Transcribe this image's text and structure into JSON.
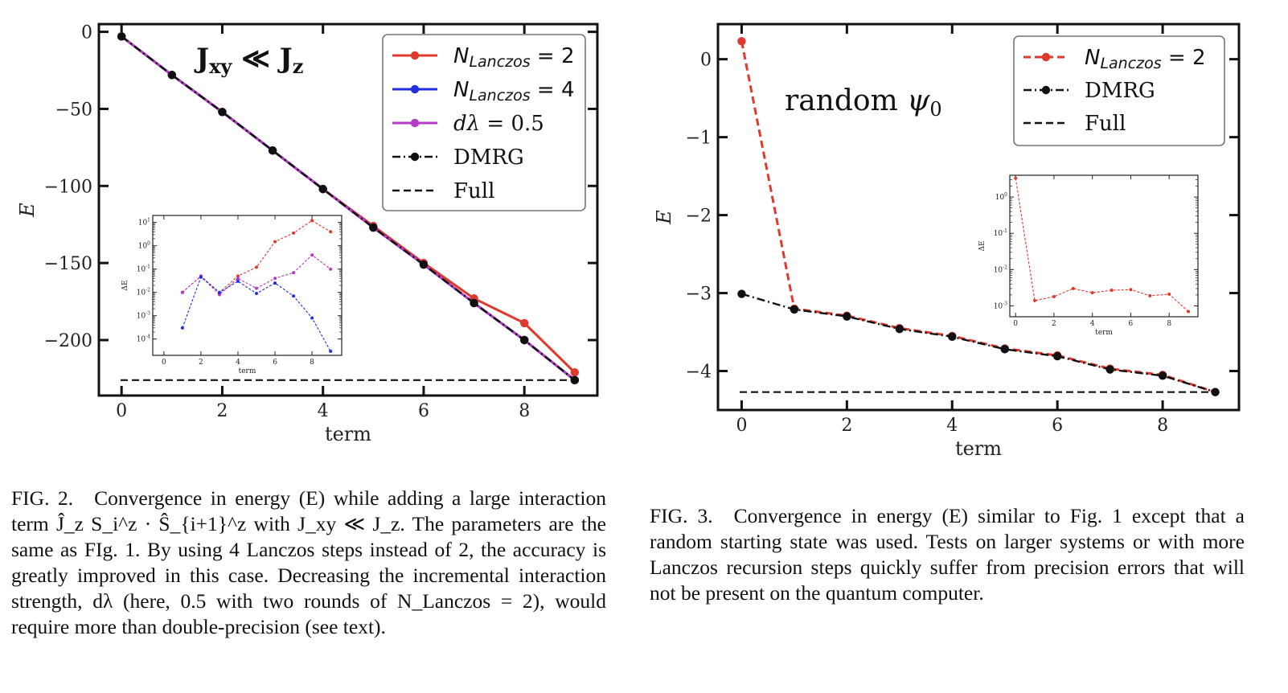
{
  "chart_data": [
    {
      "type": "line",
      "title": "J_xy ≪ J_z",
      "xlabel": "term",
      "ylabel": "E",
      "xlim": [
        -0.45,
        9.45
      ],
      "ylim": [
        -236,
        5
      ],
      "xticks": [
        0,
        2,
        4,
        6,
        8
      ],
      "yticks": [
        0,
        -50,
        -100,
        -150,
        -200
      ],
      "ytick_labels": [
        "0",
        "−50",
        "−100",
        "−150",
        "−200"
      ],
      "legend_position": "top-right",
      "x": [
        0,
        1,
        2,
        3,
        4,
        5,
        6,
        7,
        8,
        9
      ],
      "series": [
        {
          "name": "N_Lanczos = 2",
          "color": "#e03a2e",
          "style": "solid",
          "values": [
            -3,
            -28,
            -52,
            -77,
            -102,
            -126,
            -150,
            -173,
            -189,
            -221
          ]
        },
        {
          "name": "N_Lanczos = 4",
          "color": "#1f2fe0",
          "style": "solid",
          "values": [
            -3,
            -28,
            -52,
            -77,
            -102,
            -127,
            -151,
            -176,
            -200,
            -226
          ]
        },
        {
          "name": "dλ = 0.5",
          "color": "#b53ac4",
          "style": "solid",
          "values": [
            -3,
            -28,
            -52,
            -77,
            -102,
            -127,
            -151,
            -176,
            -200,
            -226
          ]
        },
        {
          "name": "DMRG",
          "color": "#111111",
          "style": "dashdot",
          "values": [
            -3,
            -28,
            -52,
            -77,
            -102,
            -127,
            -151,
            -176,
            -200,
            -226
          ]
        },
        {
          "name": "Full",
          "color": "#111111",
          "style": "dashed",
          "hline": -226
        }
      ],
      "inset": {
        "xlabel": "term",
        "ylabel": "ΔE",
        "yscale": "log",
        "xticks": [
          0,
          2,
          4,
          6,
          8
        ],
        "ytick_exponents": [
          1,
          0,
          -1,
          -2,
          -3,
          -4
        ],
        "ylim_exp": [
          -4.7,
          1.3
        ],
        "xlim": [
          -0.6,
          9.6
        ],
        "series": [
          {
            "color": "#e03a2e",
            "x": [
              1,
              2,
              3,
              4,
              5,
              6,
              7,
              8,
              9
            ],
            "values": [
              0.01,
              0.05,
              0.01,
              0.05,
              0.12,
              1.5,
              3.5,
              12,
              4
            ]
          },
          {
            "color": "#b53ac4",
            "x": [
              1,
              2,
              3,
              4,
              5,
              6,
              7,
              8,
              9
            ],
            "values": [
              0.01,
              0.05,
              0.008,
              0.04,
              0.015,
              0.04,
              0.07,
              0.4,
              0.1
            ]
          },
          {
            "color": "#1f2fe0",
            "x": [
              1,
              2,
              3,
              4,
              5,
              6,
              7,
              8,
              9
            ],
            "values": [
              0.0003,
              0.045,
              0.01,
              0.03,
              0.009,
              0.025,
              0.007,
              0.0008,
              3e-05
            ]
          }
        ]
      }
    },
    {
      "type": "line",
      "title": "random ψ0",
      "xlabel": "term",
      "ylabel": "E",
      "xlim": [
        -0.45,
        9.45
      ],
      "ylim": [
        -4.5,
        0.45
      ],
      "xticks": [
        0,
        2,
        4,
        6,
        8
      ],
      "yticks": [
        0,
        -1,
        -2,
        -3,
        -4
      ],
      "ytick_labels": [
        "0",
        "−1",
        "−2",
        "−3",
        "−4"
      ],
      "legend_position": "top-right",
      "x": [
        0,
        1,
        2,
        3,
        4,
        5,
        6,
        7,
        8,
        9
      ],
      "series": [
        {
          "name": "N_Lanczos = 2",
          "color": "#e03a2e",
          "style": "dashed",
          "values": [
            0.23,
            -3.2,
            -3.29,
            -3.45,
            -3.55,
            -3.71,
            -3.8,
            -3.97,
            -4.05,
            -4.27
          ]
        },
        {
          "name": "DMRG",
          "color": "#111111",
          "style": "dashdot",
          "values": [
            -3.01,
            -3.21,
            -3.3,
            -3.46,
            -3.56,
            -3.72,
            -3.81,
            -3.98,
            -4.06,
            -4.27
          ]
        },
        {
          "name": "Full",
          "color": "#111111",
          "style": "dashed",
          "hline": -4.27
        }
      ],
      "inset": {
        "xlabel": "term",
        "ylabel": "ΔE",
        "yscale": "log",
        "xticks": [
          0,
          2,
          4,
          6,
          8
        ],
        "ytick_exponents": [
          0,
          -1,
          -2,
          -3
        ],
        "ylim_exp": [
          -3.3,
          0.6
        ],
        "xlim": [
          -0.3,
          9.5
        ],
        "series": [
          {
            "color": "#e03a2e",
            "x": [
              0,
              1,
              2,
              3,
              4,
              5,
              6,
              7,
              8,
              9
            ],
            "values": [
              3.3,
              0.0014,
              0.0018,
              0.003,
              0.0023,
              0.0027,
              0.0028,
              0.0019,
              0.0021,
              0.0007
            ]
          }
        ]
      }
    }
  ],
  "captions": {
    "fig2": {
      "label": "FIG. 2.",
      "text": "Convergence in energy (E) while adding a large interaction term Ĵ_z S_i^z · Ŝ_{i+1}^z with J_xy ≪ J_z. The parameters are the same as FIg. 1. By using 4 Lanczos steps instead of 2, the accuracy is greatly improved in this case. Decreasing the incremental interaction strength, dλ (here, 0.5 with two rounds of N_Lanczos = 2), would require more than double-precision (see text)."
    },
    "fig3": {
      "label": "FIG. 3.",
      "text": "Convergence in energy (E) similar to Fig. 1 except that a random starting state was used. Tests on larger systems or with more Lanczos recursion steps quickly suffer from precision errors that will not be present on the quantum computer."
    }
  }
}
